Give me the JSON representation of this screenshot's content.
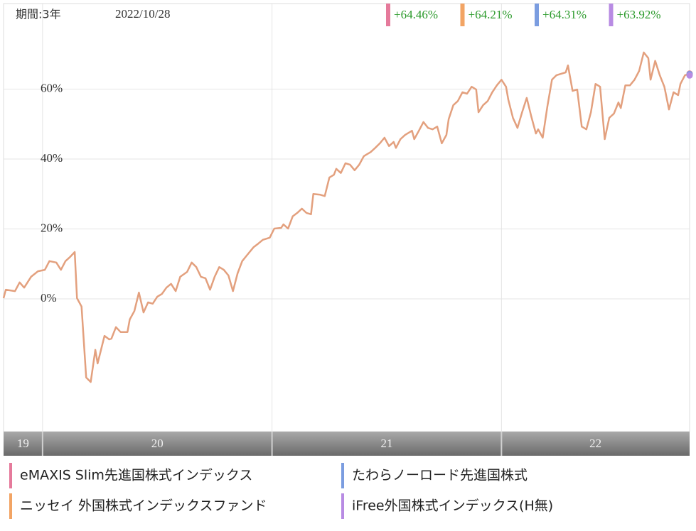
{
  "chart_data": {
    "type": "line",
    "period_label": "期間:3年",
    "date": "2022/10/28",
    "xlim": [
      2019.83,
      2022.82
    ],
    "xticks": [
      {
        "value": 2019,
        "label": "19"
      },
      {
        "value": 2020,
        "label": "20"
      },
      {
        "value": 2021,
        "label": "21"
      },
      {
        "value": 2022,
        "label": "22"
      }
    ],
    "ylim": [
      -38,
      84.5
    ],
    "yticks": [
      {
        "value": 0,
        "label": "0%"
      },
      {
        "value": 20,
        "label": "20%"
      },
      {
        "value": 40,
        "label": "40%"
      },
      {
        "value": 60,
        "label": "60%"
      }
    ],
    "grid": true,
    "x": [
      2019.83,
      2019.84,
      2019.88,
      2019.9,
      2019.92,
      2019.95,
      2019.98,
      2020.01,
      2020.03,
      2020.06,
      2020.08,
      2020.1,
      2020.12,
      2020.14,
      2020.15,
      2020.17,
      2020.19,
      2020.21,
      2020.23,
      2020.24,
      2020.27,
      2020.29,
      2020.3,
      2020.32,
      2020.34,
      2020.37,
      2020.38,
      2020.4,
      2020.42,
      2020.44,
      2020.46,
      2020.48,
      2020.5,
      2020.52,
      2020.54,
      2020.56,
      2020.58,
      2020.6,
      2020.63,
      2020.65,
      2020.67,
      2020.69,
      2020.71,
      2020.73,
      2020.75,
      2020.77,
      2020.79,
      2020.81,
      2020.83,
      2020.85,
      2020.87,
      2020.89,
      2020.92,
      2020.94,
      2020.96,
      2020.99,
      2021.01,
      2021.04,
      2021.05,
      2021.07,
      2021.09,
      2021.11,
      2021.13,
      2021.15,
      2021.17,
      2021.18,
      2021.21,
      2021.23,
      2021.25,
      2021.27,
      2021.28,
      2021.3,
      2021.32,
      2021.34,
      2021.36,
      2021.38,
      2021.4,
      2021.41,
      2021.43,
      2021.45,
      2021.47,
      2021.49,
      2021.51,
      2021.53,
      2021.54,
      2021.56,
      2021.58,
      2021.61,
      2021.62,
      2021.64,
      2021.66,
      2021.68,
      2021.7,
      2021.72,
      2021.74,
      2021.76,
      2021.77,
      2021.79,
      2021.81,
      2021.83,
      2021.85,
      2021.87,
      2021.89,
      2021.9,
      2021.92,
      2021.94,
      2021.96,
      2021.98,
      2022.0,
      2022.02,
      2022.03,
      2022.05,
      2022.07,
      2022.09,
      2022.11,
      2022.13,
      2022.15,
      2022.16,
      2022.18,
      2022.2,
      2022.22,
      2022.24,
      2022.26,
      2022.28,
      2022.29,
      2022.31,
      2022.33,
      2022.35,
      2022.37,
      2022.39,
      2022.41,
      2022.43,
      2022.45,
      2022.47,
      2022.49,
      2022.51,
      2022.52,
      2022.54,
      2022.56,
      2022.58,
      2022.6,
      2022.62,
      2022.64,
      2022.65,
      2022.67,
      2022.69,
      2022.71,
      2022.73,
      2022.75,
      2022.77,
      2022.78,
      2022.8,
      2022.82
    ],
    "line": {
      "color": "#e3a07e",
      "values": [
        0.2,
        2.6,
        2.2,
        4.7,
        3.2,
        6.3,
        7.9,
        8.3,
        10.8,
        10.4,
        8.3,
        10.8,
        12,
        13.4,
        0.2,
        -2.2,
        -22.5,
        -23.8,
        -14.6,
        -18.5,
        -10.6,
        -11.6,
        -11.4,
        -8.1,
        -9.5,
        -9.5,
        -5.9,
        -3.5,
        1.8,
        -3.9,
        -1,
        -1.4,
        0.6,
        1.4,
        3.2,
        4.3,
        2.2,
        6.3,
        7.7,
        10.4,
        9.1,
        6.3,
        5.9,
        2.6,
        6.3,
        9.1,
        8.3,
        6.7,
        2.2,
        7.3,
        10.8,
        12.4,
        14.8,
        15.8,
        16.9,
        17.5,
        20.1,
        20.3,
        21.3,
        20.1,
        23.6,
        24.6,
        25.8,
        24.6,
        24.2,
        30,
        29.8,
        29.4,
        34.7,
        35.5,
        37.2,
        36,
        38.8,
        38.4,
        36.8,
        38.4,
        40.8,
        41.2,
        42,
        43.2,
        44.5,
        46.1,
        43.7,
        44.9,
        43.2,
        45.7,
        46.9,
        48.1,
        45.7,
        48.1,
        50.6,
        48.9,
        48.5,
        49.3,
        44.5,
        46.9,
        51.4,
        55.4,
        56.6,
        59.1,
        58.7,
        60.7,
        59.9,
        53.4,
        55.4,
        56.6,
        59.1,
        61.1,
        62.7,
        60.7,
        57,
        51.8,
        48.9,
        53.4,
        57.5,
        52.2,
        47.3,
        48.5,
        46.1,
        55,
        62.7,
        64,
        64.4,
        64.8,
        66.8,
        59.5,
        59.9,
        49.3,
        48.5,
        53.4,
        61.5,
        60.7,
        45.7,
        51.8,
        53,
        56.2,
        54.6,
        61.1,
        61.1,
        62.7,
        65.2,
        70.5,
        68.9,
        62.7,
        68.1,
        64,
        60.7,
        54.2,
        59.1,
        58.3,
        61.5,
        64,
        64.4
      ]
    },
    "series": [
      {
        "name": "eMAXIS Slim先進国株式インデックス",
        "color": "#e57a9b",
        "value": 64.46,
        "value_label": "+64.46%"
      },
      {
        "name": "ニッセイ 外国株式インデックスファンド",
        "color": "#f2a464",
        "value": 64.21,
        "value_label": "+64.21%"
      },
      {
        "name": "たわらノーロード先進国株式",
        "color": "#7b9de0",
        "value": 64.31,
        "value_label": "+64.31%"
      },
      {
        "name": "iFree外国株式インデックス(H無)",
        "color": "#b88be3",
        "value": 63.92,
        "value_label": "+63.92%"
      }
    ]
  }
}
